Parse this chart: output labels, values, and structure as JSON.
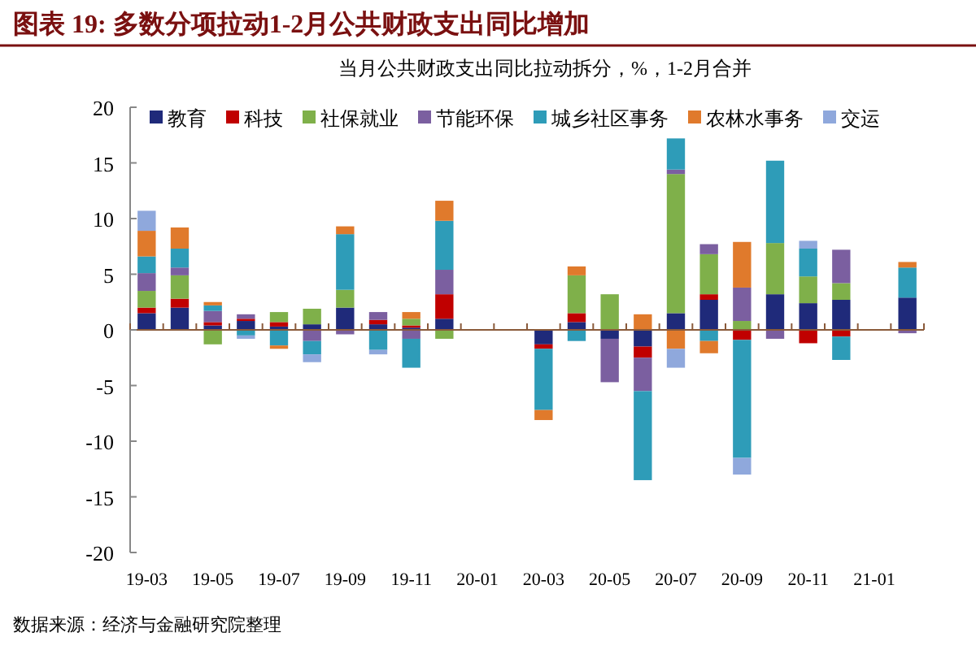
{
  "chart_data": {
    "type": "bar",
    "title": "图表 19: 多数分项拉动1-2月公共财政支出同比增加",
    "subtitle": "当月公共财政支出同比拉动拆分，%，1-2月合并",
    "annotations": [
      "数据来源：经济与金融研究院整理"
    ],
    "categories": [
      "19-03",
      null,
      "19-05",
      null,
      "19-07",
      null,
      "19-09",
      null,
      "19-11",
      null,
      "20-01",
      null,
      "20-03",
      null,
      "20-05",
      null,
      "20-07",
      null,
      "20-09",
      null,
      "20-11",
      null,
      "21-01",
      null
    ],
    "stacked": true,
    "ylim": [
      -20,
      20
    ],
    "yticks": [
      -20,
      -15,
      -10,
      -5,
      0,
      5,
      10,
      15,
      20
    ],
    "grid": false,
    "legend": "top",
    "ref_lines": [
      {
        "axis": "y",
        "value": 0,
        "color": "#8a5a3a"
      }
    ],
    "series": [
      {
        "name": "教育",
        "color": "#1f2a7a",
        "values": [
          1.5,
          2.0,
          0.4,
          0.8,
          0.3,
          0.5,
          2.0,
          0.5,
          0.2,
          1.0,
          null,
          null,
          -1.3,
          0.7,
          -0.8,
          -1.5,
          1.5,
          2.7,
          0,
          3.2,
          2.4,
          2.7,
          null,
          2.9
        ]
      },
      {
        "name": "科技",
        "color": "#c00000",
        "values": [
          0.5,
          0.8,
          0.3,
          0.2,
          0.4,
          0,
          0,
          0.4,
          0.2,
          2.2,
          null,
          null,
          -0.4,
          0.8,
          0,
          -1.0,
          0,
          0.5,
          -0.9,
          0,
          -1.2,
          -0.6,
          null,
          0
        ]
      },
      {
        "name": "社保就业",
        "color": "#7fb04a",
        "values": [
          1.5,
          2.1,
          -1.3,
          0,
          0.9,
          1.4,
          1.6,
          0,
          0.6,
          -0.8,
          null,
          null,
          0,
          3.4,
          3.2,
          0,
          12.5,
          3.6,
          0.8,
          4.6,
          2.4,
          1.5,
          null,
          0
        ]
      },
      {
        "name": "节能环保",
        "color": "#7b5fa0",
        "values": [
          1.6,
          0.7,
          1.0,
          0.4,
          0,
          -1.0,
          -0.4,
          0.7,
          -0.8,
          2.2,
          null,
          null,
          0,
          0,
          -3.9,
          -3.0,
          0.4,
          0.9,
          3.0,
          -0.8,
          0,
          3.0,
          null,
          -0.3
        ]
      },
      {
        "name": "城乡社区事务",
        "color": "#2e9cb8",
        "values": [
          1.5,
          1.7,
          0.5,
          -0.5,
          -1.4,
          -1.2,
          5.0,
          -1.8,
          -2.6,
          4.4,
          null,
          null,
          -5.5,
          -1.0,
          0,
          -8.0,
          2.8,
          -1.0,
          -10.6,
          7.4,
          2.5,
          -2.1,
          null,
          2.7
        ]
      },
      {
        "name": "农林水事务",
        "color": "#e07a2c",
        "values": [
          2.3,
          1.9,
          0.3,
          0,
          -0.3,
          0,
          0.7,
          0,
          0.6,
          1.8,
          null,
          null,
          -0.9,
          0.8,
          0,
          1.4,
          -1.7,
          -1.1,
          4.1,
          0,
          0,
          0,
          null,
          0.5
        ]
      },
      {
        "name": "交运",
        "color": "#8fa8dc",
        "values": [
          1.8,
          0,
          0,
          -0.3,
          0,
          -0.7,
          0,
          -0.4,
          0,
          0,
          null,
          null,
          0,
          0,
          0,
          0,
          -1.7,
          0,
          -1.5,
          0,
          0.7,
          0,
          null,
          0
        ]
      }
    ]
  }
}
